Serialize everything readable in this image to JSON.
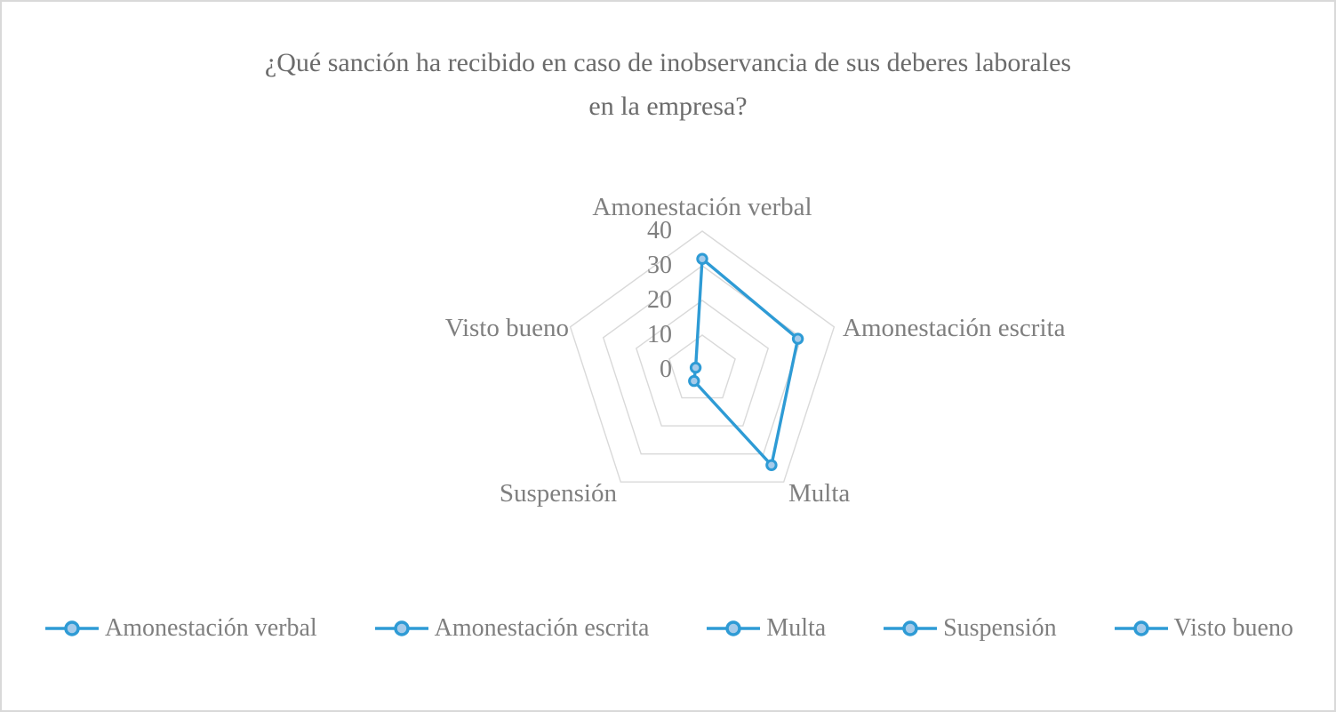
{
  "chart_data": {
    "type": "radar",
    "title": "¿Qué sanción ha recibido en caso de inobservancia de sus deberes laborales en la empresa?",
    "title_lines": [
      "¿Qué sanción ha recibido en caso de inobservancia de sus deberes laborales",
      "en la empresa?"
    ],
    "categories": [
      "Amonestación verbal",
      "Amonestación escrita",
      "Multa",
      "Suspensión",
      "Visto bueno"
    ],
    "values": [
      32,
      29,
      34,
      4,
      2
    ],
    "axis_ticks": [
      0,
      10,
      20,
      30,
      40
    ],
    "rlim": [
      0,
      40
    ],
    "grid": "concentric-pentagons",
    "spokes_visible": false,
    "legend_position": "bottom",
    "legend": [
      "Amonestación verbal",
      "Amonestación escrita",
      "Multa",
      "Suspensión",
      "Visto bueno"
    ],
    "colors": {
      "series_line": "#2E9BD5",
      "marker_fill": "#A6CBEA",
      "grid_line": "#D9D9D9",
      "label_text": "#7F7F7F",
      "title_text": "#6B6B6B"
    }
  }
}
